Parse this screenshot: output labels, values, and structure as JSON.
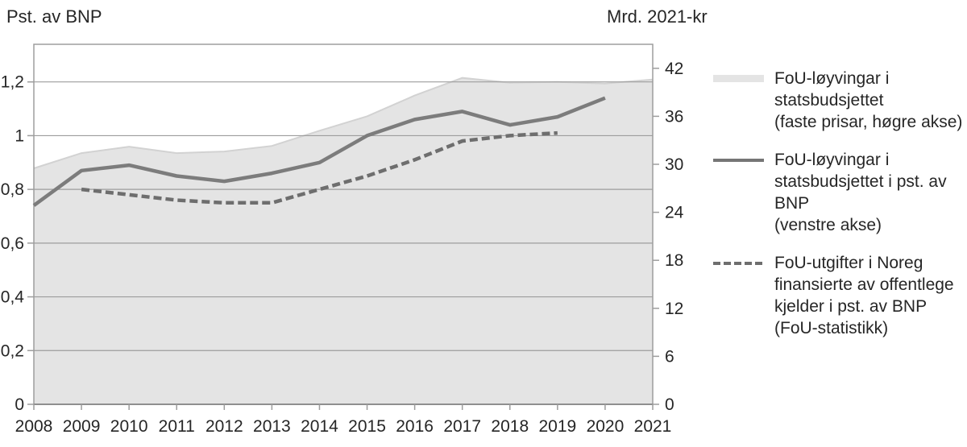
{
  "titles": {
    "left_axis": "Pst. av BNP",
    "right_axis": "Mrd. 2021-kr"
  },
  "colors": {
    "area_fill": "#e4e4e4",
    "area_edge": "#d2d2d2",
    "solid_line": "#7c7c7c",
    "dashed_line": "#6e6e6e",
    "grid": "#9d9d9d",
    "frame": "#9d9d9d",
    "baseline": "#8f8f8f",
    "text": "#262626"
  },
  "chart_data": {
    "type": "area+line",
    "title": "",
    "x_axis": {
      "ticks": [
        2008,
        2009,
        2010,
        2011,
        2012,
        2013,
        2014,
        2015,
        2016,
        2017,
        2018,
        2019,
        2020,
        2021
      ]
    },
    "left_axis": {
      "label": "Pst. av BNP",
      "tick_labels": [
        "0",
        "0,2",
        "0,4",
        "0,6",
        "0,8",
        "1",
        "1,2"
      ],
      "tick_values": [
        0,
        0.2,
        0.4,
        0.6,
        0.8,
        1.0,
        1.2
      ],
      "range": [
        0,
        1.34
      ]
    },
    "right_axis": {
      "label": "Mrd. 2021-kr",
      "tick_labels": [
        "0",
        "6",
        "12",
        "18",
        "24",
        "30",
        "36",
        "42"
      ],
      "tick_values": [
        0,
        6,
        12,
        18,
        24,
        30,
        36,
        42
      ],
      "range": [
        0,
        45
      ]
    },
    "grid": "horizontal",
    "legend_position": "right",
    "series": [
      {
        "name": "FoU-løyvingar i statsbudsjettet (faste prisar, høgre akse)",
        "type": "area",
        "axis": "right",
        "x": [
          2008,
          2009,
          2010,
          2011,
          2012,
          2013,
          2014,
          2015,
          2016,
          2017,
          2018,
          2019,
          2020,
          2021
        ],
        "values": [
          29.5,
          31.4,
          32.2,
          31.4,
          31.6,
          32.3,
          34.2,
          36.0,
          38.6,
          40.8,
          40.2,
          40.3,
          40.1,
          40.6
        ]
      },
      {
        "name": "FoU-løyvingar i statsbudsjettet i pst. av BNP (venstre akse)",
        "type": "line",
        "axis": "left",
        "x": [
          2008,
          2009,
          2010,
          2011,
          2012,
          2013,
          2014,
          2015,
          2016,
          2017,
          2018,
          2019,
          2020
        ],
        "values": [
          0.74,
          0.87,
          0.89,
          0.85,
          0.83,
          0.86,
          0.9,
          1.0,
          1.06,
          1.09,
          1.04,
          1.07,
          1.14
        ]
      },
      {
        "name": "FoU-utgifter i Noreg finansierte av offentlege kjelder i pst. av BNP (FoU-statistikk)",
        "type": "dashed-line",
        "axis": "left",
        "x": [
          2009,
          2010,
          2011,
          2012,
          2013,
          2014,
          2015,
          2016,
          2017,
          2018,
          2019
        ],
        "values": [
          0.8,
          0.78,
          0.76,
          0.75,
          0.75,
          0.8,
          0.85,
          0.91,
          0.98,
          1.0,
          1.01
        ]
      }
    ]
  },
  "legend": {
    "entries": [
      {
        "swatch": "area-swatch",
        "lines": [
          "FoU-løyvingar i",
          "statsbudsjettet",
          "(faste prisar, høgre akse)"
        ]
      },
      {
        "swatch": "solid-line-swatch",
        "lines": [
          "FoU-løyvingar i",
          "statsbudsjettet i pst. av BNP",
          "(venstre akse)"
        ]
      },
      {
        "swatch": "dashed-line-swatch",
        "lines": [
          "FoU-utgifter i Noreg",
          "finansierte av offentlege",
          "kjelder i pst. av BNP",
          "(FoU-statistikk)"
        ]
      }
    ]
  }
}
